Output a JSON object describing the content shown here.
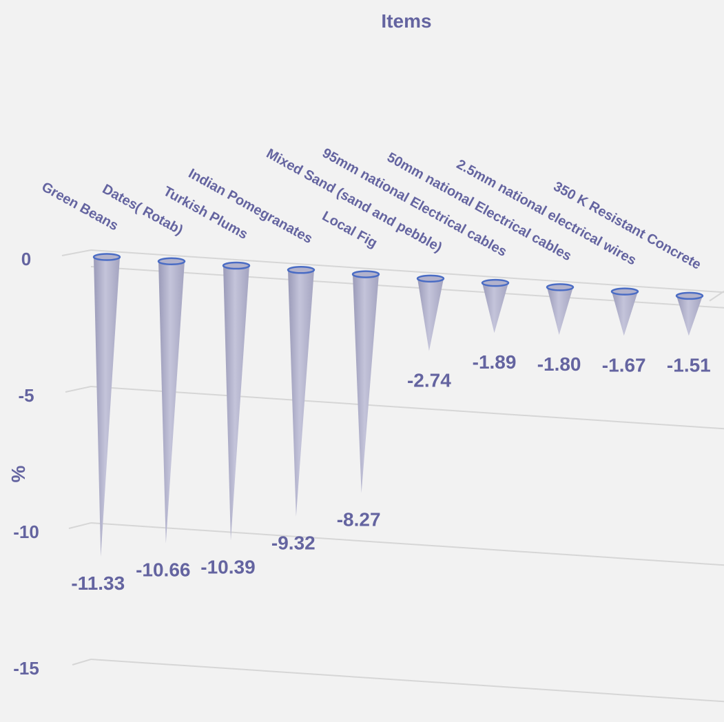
{
  "chart_data": {
    "type": "bar",
    "title": "",
    "xlabel": "Items",
    "ylabel": "%",
    "ylim": [
      -15,
      0
    ],
    "yticks": [
      0,
      -5,
      -10,
      -15
    ],
    "grid": true,
    "legend": "none",
    "mark_shape": "cone",
    "categories": [
      "Green Beans",
      "Dates( Rotab)",
      "Turkish Plums",
      "Indian Pomegranates",
      "Local Fig",
      "Mixed Sand (sand and pebble)",
      "95mm national Electrical cables",
      "50mm national Electrical cables",
      "2.5mm national electrical wires",
      "350 K Resistant Concrete"
    ],
    "values": [
      -11.33,
      -10.66,
      -10.39,
      -9.32,
      -8.27,
      -2.74,
      -1.89,
      -1.8,
      -1.67,
      -1.51
    ],
    "value_labels": [
      "-11.33",
      "-10.66",
      "-10.39",
      "-9.32",
      "-8.27",
      "-2.74",
      "-1.89",
      "-1.80",
      "-1.67",
      "-1.51"
    ],
    "colors": {
      "text": "#6464a0",
      "cone": "#b2b2cc",
      "cone_rim": "#4a6cc4",
      "grid": "#d6d6d6",
      "background": "#f2f2f2"
    }
  }
}
